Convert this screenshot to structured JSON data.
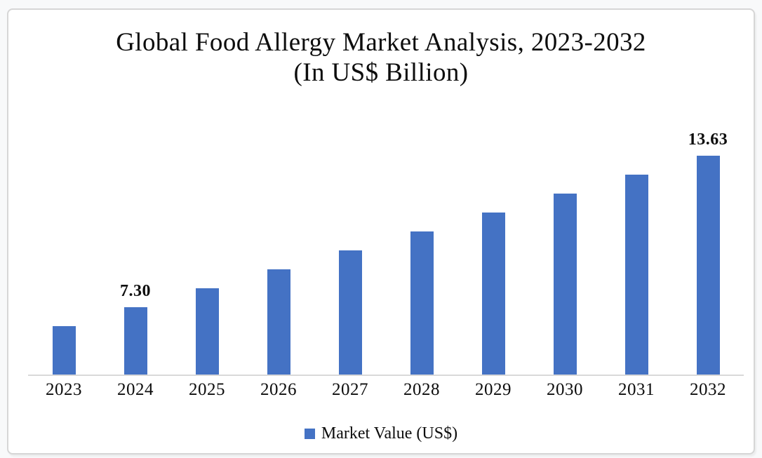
{
  "page": {
    "background": "#f8f9fa",
    "card_background": "#ffffff",
    "card_border_color": "#d6d6d6"
  },
  "chart": {
    "title_line1": "Global Food Allergy Market Analysis, 2023-2032",
    "title_line2": "(In US$ Billion)",
    "legend_label": "Market Value (US$)",
    "bar_color": "#4472C4",
    "axis_line_color": "#D9D9D9",
    "text_color": "#0d0d0d"
  },
  "chart_data": {
    "type": "bar",
    "title": "Global Food Allergy Market Analysis, 2023-2032 (In US$ Billion)",
    "series_name": "Market Value (US$)",
    "categories": [
      "2023",
      "2024",
      "2025",
      "2026",
      "2027",
      "2028",
      "2029",
      "2030",
      "2031",
      "2032"
    ],
    "values": [
      6.51,
      7.3,
      8.09,
      8.88,
      9.67,
      10.46,
      11.25,
      12.05,
      12.84,
      13.63
    ],
    "data_labels": [
      "",
      "7.30",
      "",
      "",
      "",
      "",
      "",
      "",
      "",
      "13.63"
    ],
    "ylim": [
      4.5,
      13.63
    ],
    "xlabel": "",
    "ylabel": "",
    "grid": false,
    "y_axis_visible": false,
    "legend_position": "bottom"
  }
}
